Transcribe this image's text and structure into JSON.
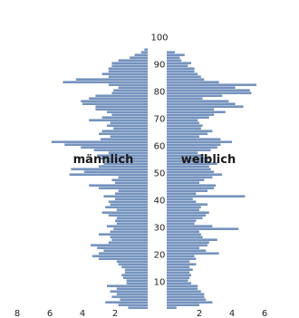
{
  "chart_data": {
    "type": "bar",
    "orientation": "horizontal-pyramid",
    "age_ticks": [
      "10",
      "20",
      "30",
      "40",
      "50",
      "60",
      "70",
      "80",
      "90",
      "100"
    ],
    "x_ticks_left": [
      "8",
      "6",
      "4",
      "2"
    ],
    "x_ticks_right": [
      "2",
      "4",
      "6"
    ],
    "xlim_left": [
      0,
      8
    ],
    "xlim_right": [
      0,
      6
    ],
    "ylim": [
      0,
      100
    ],
    "labels": {
      "left": "männlich",
      "right": "weiblich"
    },
    "color": "#7593bd",
    "series": [
      {
        "name": "männlich",
        "values": [
          1.2,
          1.8,
          2.6,
          1.7,
          2.2,
          1.9,
          2.3,
          1.9,
          2.5,
          1.3,
          1.3,
          1.5,
          1.6,
          1.4,
          1.4,
          1.6,
          1.8,
          1.9,
          3.0,
          3.4,
          3.0,
          2.7,
          3.1,
          3.5,
          2.4,
          2.2,
          2.3,
          3.0,
          2.3,
          2.1,
          2.5,
          1.9,
          2.0,
          1.9,
          2.4,
          2.8,
          1.9,
          2.6,
          2.3,
          2.4,
          2.0,
          2.7,
          2.0,
          1.8,
          3.0,
          3.6,
          2.0,
          2.2,
          1.8,
          4.8,
          3.9,
          4.7,
          3.0,
          2.7,
          2.6,
          3.0,
          3.1,
          2.4,
          3.3,
          4.1,
          5.1,
          5.9,
          2.9,
          2.3,
          3.0,
          2.8,
          2.1,
          2.5,
          2.3,
          3.6,
          2.8,
          2.2,
          2.5,
          3.2,
          3.2,
          4.0,
          4.1,
          3.6,
          3.2,
          2.2,
          2.1,
          1.8,
          2.4,
          5.2,
          4.4,
          2.4,
          2.8,
          2.4,
          2.4,
          2.2,
          2.2,
          1.8,
          1.1,
          0.8,
          0.4,
          0.2,
          0.0,
          0.0,
          0.0,
          0.0
        ]
      },
      {
        "name": "weiblich",
        "values": [
          0.6,
          2.0,
          2.8,
          2.4,
          2.3,
          2.3,
          2.1,
          1.9,
          1.9,
          1.5,
          1.3,
          1.4,
          1.5,
          1.4,
          1.6,
          1.4,
          1.8,
          1.4,
          1.8,
          1.7,
          3.2,
          2.4,
          2.0,
          2.5,
          2.6,
          3.1,
          2.2,
          2.1,
          2.0,
          4.4,
          2.8,
          1.7,
          1.8,
          2.2,
          2.4,
          2.6,
          2.0,
          2.1,
          2.5,
          1.8,
          1.6,
          4.8,
          1.8,
          2.5,
          2.9,
          3.0,
          2.0,
          2.3,
          2.8,
          3.4,
          2.9,
          2.7,
          2.6,
          3.1,
          2.5,
          2.6,
          2.3,
          1.9,
          2.7,
          3.1,
          3.3,
          4.0,
          3.3,
          2.0,
          2.5,
          2.8,
          2.1,
          2.2,
          2.0,
          1.9,
          2.6,
          2.9,
          3.6,
          2.9,
          4.7,
          4.2,
          3.8,
          2.2,
          3.4,
          5.2,
          5.1,
          4.2,
          5.5,
          3.2,
          2.3,
          2.1,
          1.9,
          1.7,
          1.7,
          1.3,
          1.5,
          0.9,
          0.8,
          1.1,
          0.5,
          0.0,
          0.0,
          0.0,
          0.0,
          0.0
        ]
      }
    ]
  }
}
